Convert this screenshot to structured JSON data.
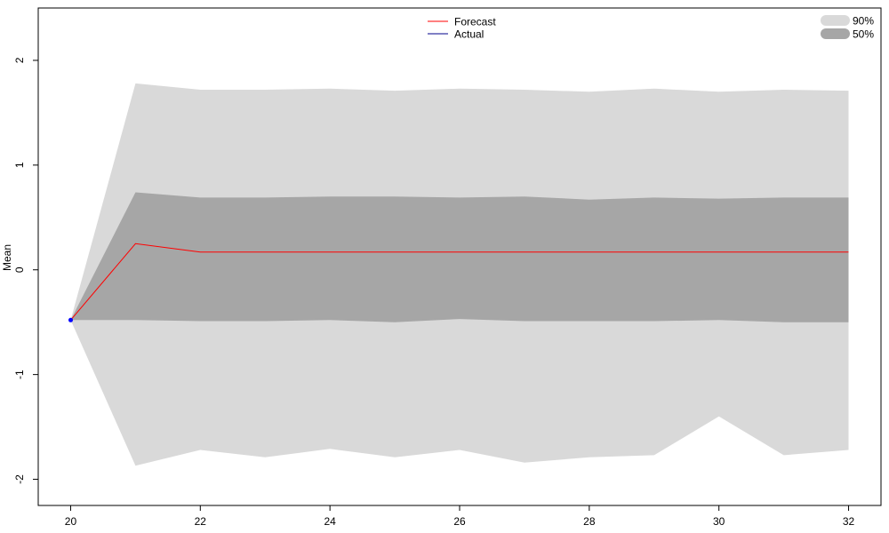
{
  "chart_data": {
    "type": "line",
    "title": "",
    "xlabel": "",
    "ylabel": "Mean",
    "xlim": [
      19.5,
      32.5
    ],
    "ylim": [
      -2.25,
      2.5
    ],
    "x_ticks": [
      20,
      22,
      24,
      26,
      28,
      30,
      32
    ],
    "y_ticks": [
      -2,
      -1,
      0,
      1,
      2
    ],
    "grid": false,
    "legend": {
      "lines": {
        "position": "top-center",
        "entries": [
          {
            "label": "Forecast",
            "color": "#ff0000"
          },
          {
            "label": "Actual",
            "color": "#00008b"
          }
        ]
      },
      "bands": {
        "position": "top-right",
        "entries": [
          {
            "label": "90%",
            "color": "#d9d9d9"
          },
          {
            "label": "50%",
            "color": "#a6a6a6"
          }
        ]
      }
    },
    "x": [
      20,
      21,
      22,
      23,
      24,
      25,
      26,
      27,
      28,
      29,
      30,
      31,
      32
    ],
    "series": [
      {
        "name": "Forecast",
        "color": "#ff0000",
        "x": [
          20,
          21,
          22,
          23,
          24,
          25,
          26,
          27,
          28,
          29,
          30,
          31,
          32
        ],
        "values": [
          -0.48,
          0.25,
          0.17,
          0.17,
          0.17,
          0.17,
          0.17,
          0.17,
          0.17,
          0.17,
          0.17,
          0.17,
          0.17
        ]
      },
      {
        "name": "Actual",
        "color": "#0000ff",
        "x": [
          20
        ],
        "values": [
          -0.48
        ]
      }
    ],
    "bands": [
      {
        "name": "90%",
        "color": "#d9d9d9",
        "upper": [
          -0.48,
          1.78,
          1.72,
          1.72,
          1.73,
          1.71,
          1.73,
          1.72,
          1.7,
          1.73,
          1.7,
          1.72,
          1.71
        ],
        "lower": [
          -0.48,
          -1.87,
          -1.72,
          -1.79,
          -1.71,
          -1.79,
          -1.72,
          -1.84,
          -1.79,
          -1.77,
          -1.4,
          -1.77,
          -1.72
        ]
      },
      {
        "name": "50%",
        "color": "#a6a6a6",
        "upper": [
          -0.48,
          0.74,
          0.69,
          0.69,
          0.7,
          0.7,
          0.69,
          0.7,
          0.67,
          0.69,
          0.68,
          0.69,
          0.69
        ],
        "lower": [
          -0.48,
          -0.48,
          -0.49,
          -0.49,
          -0.48,
          -0.5,
          -0.47,
          -0.49,
          -0.49,
          -0.49,
          -0.48,
          -0.5,
          -0.5
        ]
      }
    ]
  }
}
